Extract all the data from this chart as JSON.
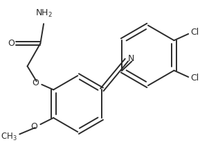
{
  "background": "#ffffff",
  "line_color": "#2a2a2a",
  "line_width": 1.4,
  "font_size": 9,
  "figsize": [
    2.89,
    2.22
  ],
  "dpi": 100,
  "xlim": [
    0,
    289
  ],
  "ylim": [
    0,
    222
  ]
}
